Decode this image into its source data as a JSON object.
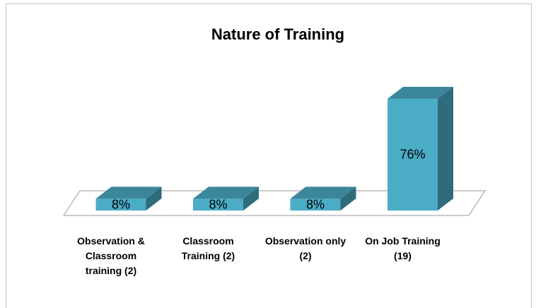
{
  "chart_data": {
    "type": "bar3d",
    "title": "Nature of Training",
    "categories": [
      "Observation & Classroom training (2)",
      "Classroom Training (2)",
      "Observation only (2)",
      "On Job Training (19)"
    ],
    "values": [
      8,
      8,
      8,
      76
    ],
    "value_labels": [
      "8%",
      "8%",
      "8%",
      "76%"
    ],
    "color": "#4bacc6"
  }
}
